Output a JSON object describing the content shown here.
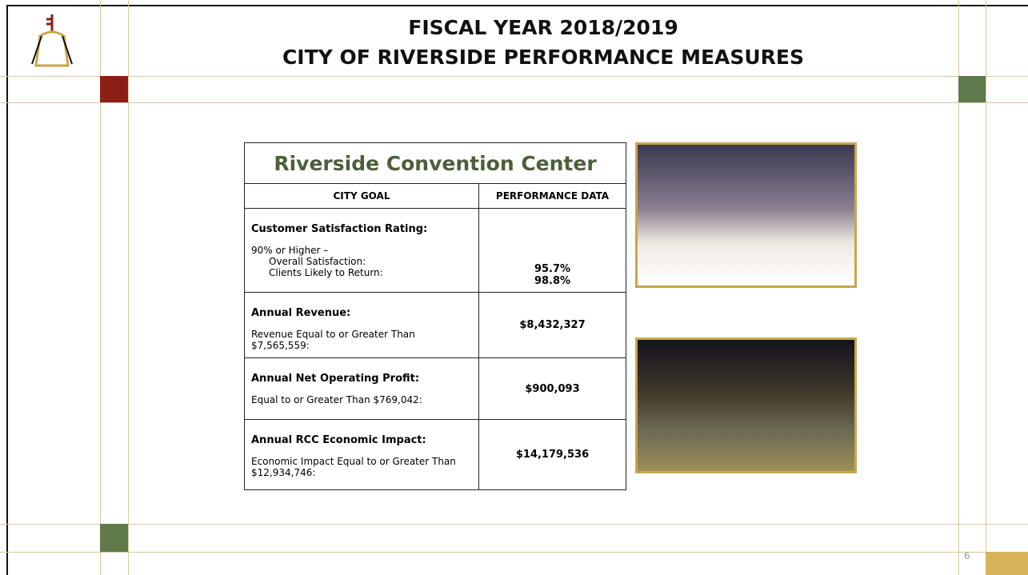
{
  "header": {
    "title_lines": [
      "FISCAL YEAR 2018/2019",
      "CITY OF RIVERSIDE PERFORMANCE MEASURES"
    ]
  },
  "table": {
    "title": "Riverside Convention Center",
    "columns": [
      "CITY GOAL",
      "PERFORMANCE DATA"
    ],
    "rows": [
      {
        "heading": "Customer Satisfaction Rating:",
        "details": [
          "90% or Higher –",
          "Overall Satisfaction:",
          "Clients Likely to Return:"
        ],
        "values": [
          "95.7%",
          "98.8%"
        ]
      },
      {
        "heading": "Annual Revenue:",
        "details": [
          "Revenue Equal to or Greater Than $7,565,559:"
        ],
        "values": [
          "$8,432,327"
        ]
      },
      {
        "heading": "Annual Net Operating Profit:",
        "details": [
          "Equal to or Greater Than $769,042:"
        ],
        "values": [
          "$900,093"
        ]
      },
      {
        "heading": "Annual RCC Economic Impact:",
        "details": [
          "Economic Impact Equal to or Greater Than $12,934,746:"
        ],
        "values": [
          "$14,179,536"
        ]
      }
    ]
  },
  "page_number": "6"
}
